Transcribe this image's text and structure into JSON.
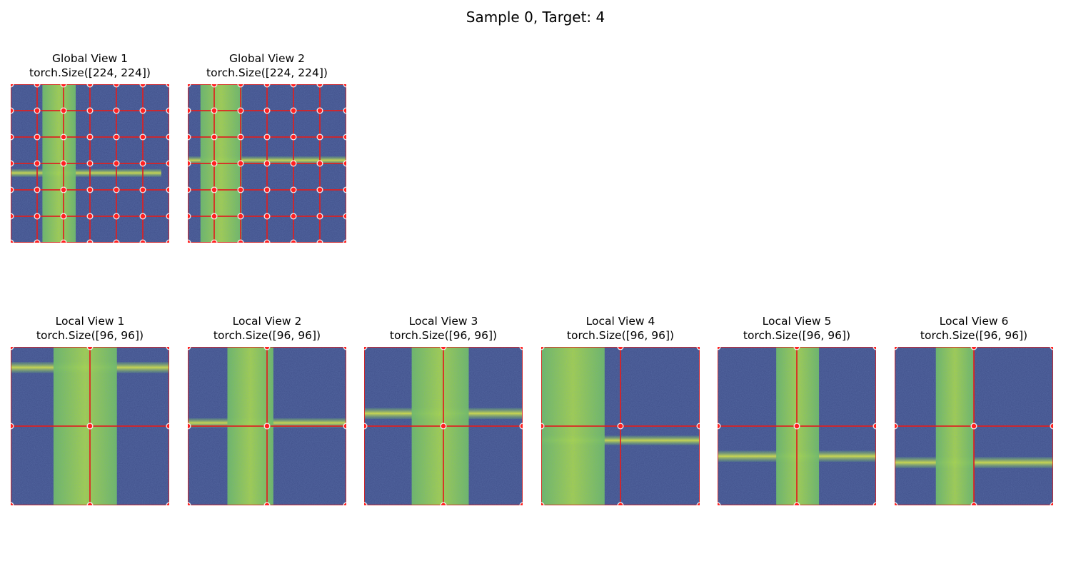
{
  "figure": {
    "suptitle": "Sample 0, Target: 4",
    "colors": {
      "background": "#3f4f8a",
      "band": "#6dc05a",
      "band_light": "#a9db3e",
      "grid_line": "#e02020",
      "grid_point": "#ff2020"
    },
    "global_views": [
      {
        "title": "Global View 1",
        "size": "torch.Size([224, 224])",
        "grid_cells": 6,
        "vertical_bands": [
          [
            0.2,
            0.41
          ]
        ],
        "horizontal_bands": [
          {
            "center": 0.56,
            "width": 0.05,
            "from": 0.0,
            "to": 0.95
          }
        ]
      },
      {
        "title": "Global View 2",
        "size": "torch.Size([224, 224])",
        "grid_cells": 6,
        "vertical_bands": [
          [
            0.08,
            0.34
          ]
        ],
        "horizontal_bands": [
          {
            "center": 0.48,
            "width": 0.05,
            "from": 0.0,
            "to": 1.0
          }
        ]
      }
    ],
    "local_views": [
      {
        "title": "Local View 1",
        "size": "torch.Size([96, 96])",
        "grid_cells": 2,
        "vertical_bands": [
          [
            0.27,
            0.67
          ]
        ],
        "horizontal_bands": [
          {
            "center": 0.13,
            "width": 0.07,
            "from": 0.0,
            "to": 1.0
          }
        ]
      },
      {
        "title": "Local View 2",
        "size": "torch.Size([96, 96])",
        "grid_cells": 2,
        "vertical_bands": [
          [
            0.25,
            0.54
          ]
        ],
        "horizontal_bands": [
          {
            "center": 0.48,
            "width": 0.06,
            "from": 0.0,
            "to": 1.0
          }
        ]
      },
      {
        "title": "Local View 3",
        "size": "torch.Size([96, 96])",
        "grid_cells": 2,
        "vertical_bands": [
          [
            0.3,
            0.66
          ]
        ],
        "horizontal_bands": [
          {
            "center": 0.42,
            "width": 0.07,
            "from": 0.0,
            "to": 1.0
          }
        ]
      },
      {
        "title": "Local View 4",
        "size": "torch.Size([96, 96])",
        "grid_cells": 2,
        "vertical_bands": [
          [
            0.0,
            0.4
          ]
        ],
        "horizontal_bands": [
          {
            "center": 0.59,
            "width": 0.06,
            "from": 0.0,
            "to": 1.0
          }
        ]
      },
      {
        "title": "Local View 5",
        "size": "torch.Size([96, 96])",
        "grid_cells": 2,
        "vertical_bands": [
          [
            0.37,
            0.64
          ]
        ],
        "horizontal_bands": [
          {
            "center": 0.69,
            "width": 0.07,
            "from": 0.0,
            "to": 1.0
          }
        ]
      },
      {
        "title": "Local View 6",
        "size": "torch.Size([96, 96])",
        "grid_cells": 2,
        "vertical_bands": [
          [
            0.26,
            0.5
          ]
        ],
        "horizontal_bands": [
          {
            "center": 0.73,
            "width": 0.07,
            "from": 0.0,
            "to": 1.0
          }
        ]
      }
    ]
  }
}
